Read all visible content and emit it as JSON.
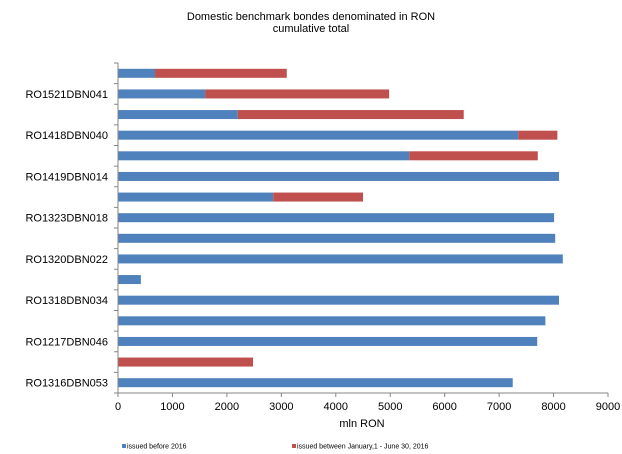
{
  "chart_data": {
    "type": "bar",
    "orientation": "horizontal",
    "stacked": true,
    "title": [
      "Domestic benchmark bondes denominated in RON",
      "cumulative total"
    ],
    "xlabel": "mln RON",
    "ylabel": "",
    "xlim": [
      0,
      9000
    ],
    "xticks": [
      0,
      1000,
      2000,
      3000,
      4000,
      5000,
      6000,
      7000,
      8000,
      9000
    ],
    "grid": false,
    "legend_position": "bottom",
    "categories": [
      "RO1316DBN053",
      "",
      "RO1217DBN046",
      "",
      "RO1318DBN034",
      "",
      "RO1320DBN022",
      "",
      "RO1323DBN018",
      "",
      "RO1419DBN014",
      "",
      "RO1418DBN040",
      "",
      "RO1521DBN041",
      ""
    ],
    "series": [
      {
        "name": "issued before 2016",
        "color": "#4f81bd",
        "values": [
          7250,
          0,
          7700,
          7850,
          8100,
          420,
          8170,
          8030,
          8010,
          2850,
          8100,
          5350,
          7350,
          2200,
          1600,
          680
        ]
      },
      {
        "name": "issued between January,1 - June 30, 2016",
        "color": "#c0504d",
        "values": [
          0,
          2480,
          0,
          0,
          0,
          0,
          0,
          0,
          0,
          1650,
          0,
          2360,
          720,
          4150,
          3380,
          2420
        ]
      }
    ]
  }
}
